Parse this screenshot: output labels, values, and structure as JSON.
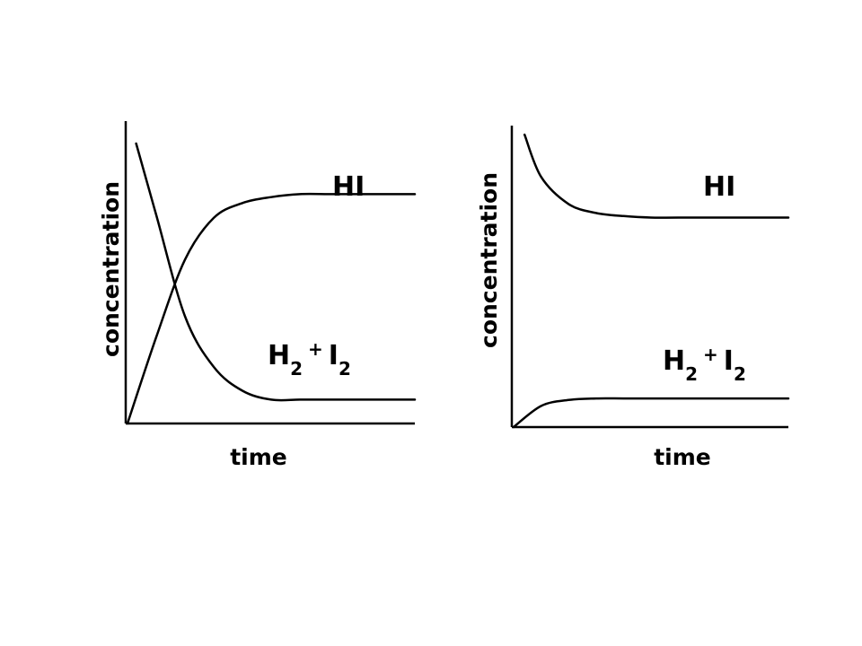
{
  "chart_data": [
    {
      "type": "line",
      "xlabel": "time",
      "ylabel": "concentration",
      "grid": false,
      "xlim": [
        0,
        10
      ],
      "ylim": [
        0,
        10
      ],
      "series": [
        {
          "name": "HI",
          "name_base": "HI",
          "name_parts": [
            "HI"
          ],
          "x": [
            0,
            1,
            2,
            3,
            4,
            5,
            6,
            7,
            8,
            10
          ],
          "y": [
            0,
            2.9,
            5.5,
            6.9,
            7.4,
            7.6,
            7.7,
            7.7,
            7.7,
            7.7
          ]
        },
        {
          "name": "H2 + I2",
          "name_parts": [
            "H",
            "2",
            "+",
            "I",
            "2"
          ],
          "x": [
            0.3,
            1,
            2,
            3,
            4,
            5,
            6,
            7,
            8,
            10
          ],
          "y": [
            9.4,
            7.0,
            3.6,
            1.9,
            1.1,
            0.8,
            0.8,
            0.8,
            0.8,
            0.8
          ]
        }
      ]
    },
    {
      "type": "line",
      "xlabel": "time",
      "ylabel": "concentration",
      "grid": false,
      "xlim": [
        0,
        10
      ],
      "ylim": [
        0,
        10
      ],
      "series": [
        {
          "name": "HI",
          "name_parts": [
            "HI"
          ],
          "x": [
            0.4,
            1,
            2,
            3,
            4,
            5,
            6,
            8,
            10
          ],
          "y": [
            9.7,
            8.3,
            7.4,
            7.1,
            7.0,
            6.95,
            6.95,
            6.95,
            6.95
          ]
        },
        {
          "name": "H2 + I2",
          "name_parts": [
            "H",
            "2",
            "+",
            "I",
            "2"
          ],
          "x": [
            0,
            1,
            2,
            3,
            4,
            5,
            6,
            8,
            10
          ],
          "y": [
            0,
            0.7,
            0.9,
            0.95,
            0.95,
            0.95,
            0.95,
            0.95,
            0.95
          ]
        }
      ]
    }
  ]
}
